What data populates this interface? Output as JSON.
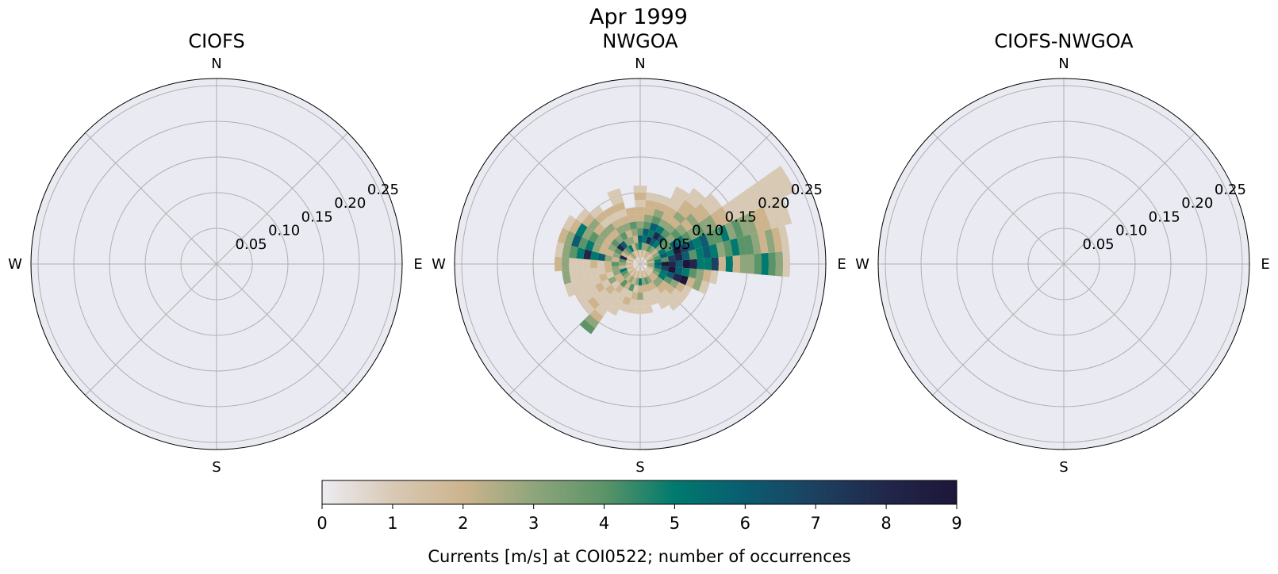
{
  "figure": {
    "title": "Apr 1999"
  },
  "chart_data": [
    {
      "type": "polar-histogram",
      "title": "CIOFS",
      "directions": [
        "N",
        "E",
        "S",
        "W"
      ],
      "r_ticks": [
        "0.05",
        "0.10",
        "0.15",
        "0.20",
        "0.25"
      ],
      "r_range": [
        0,
        0.26
      ],
      "grid": true,
      "bins": []
    },
    {
      "type": "polar-histogram",
      "title": "NWGOA",
      "directions": [
        "N",
        "E",
        "S",
        "W"
      ],
      "r_ticks": [
        "0.05",
        "0.10",
        "0.15",
        "0.20",
        "0.25"
      ],
      "r_range": [
        0,
        0.26
      ],
      "grid": true,
      "direction_bin_deg": 10,
      "speed_bin": 0.01,
      "bins": [
        {
          "dir_deg": 90,
          "counts": [
            2,
            3,
            6,
            9,
            8,
            6,
            9,
            8,
            5,
            5,
            7,
            2,
            5,
            2,
            3,
            3,
            4,
            5,
            4,
            3,
            1
          ]
        },
        {
          "dir_deg": 80,
          "counts": [
            1,
            2,
            5,
            4,
            7,
            8,
            6,
            4,
            5,
            6,
            5,
            3,
            4,
            5,
            4,
            4,
            3,
            2,
            3,
            2,
            1
          ]
        },
        {
          "dir_deg": 70,
          "counts": [
            1,
            3,
            4,
            6,
            5,
            9,
            7,
            6,
            5,
            6,
            4,
            4,
            5,
            3,
            4,
            3,
            3,
            2,
            2,
            1,
            1,
            1
          ]
        },
        {
          "dir_deg": 60,
          "counts": [
            0,
            2,
            3,
            5,
            4,
            6,
            5,
            4,
            3,
            4,
            3,
            3,
            2,
            2,
            1,
            1,
            1,
            1,
            1,
            1,
            1,
            1,
            1,
            1
          ]
        },
        {
          "dir_deg": 50,
          "counts": [
            0,
            1,
            2,
            3,
            4,
            3,
            4,
            3,
            2,
            3,
            2,
            2,
            1,
            1
          ]
        },
        {
          "dir_deg": 100,
          "counts": [
            1,
            3,
            5,
            7,
            9,
            6,
            5,
            4,
            3,
            2,
            1
          ]
        },
        {
          "dir_deg": 110,
          "counts": [
            0,
            2,
            4,
            5,
            6,
            8,
            9,
            2,
            3,
            1
          ]
        },
        {
          "dir_deg": 120,
          "counts": [
            0,
            1,
            3,
            5,
            4,
            3,
            2,
            1
          ]
        },
        {
          "dir_deg": 130,
          "counts": [
            0,
            1,
            2,
            3,
            2,
            2,
            1,
            1
          ]
        },
        {
          "dir_deg": 140,
          "counts": [
            0,
            1,
            2,
            3,
            2,
            1,
            1,
            1
          ]
        },
        {
          "dir_deg": 150,
          "counts": [
            1,
            2,
            3,
            2,
            1,
            1,
            1
          ]
        },
        {
          "dir_deg": 160,
          "counts": [
            0,
            1,
            4,
            2,
            1,
            1
          ]
        },
        {
          "dir_deg": 170,
          "counts": [
            1,
            2,
            3,
            2,
            1,
            1,
            1
          ]
        },
        {
          "dir_deg": 180,
          "counts": [
            0,
            1,
            5,
            2,
            3,
            1,
            1
          ]
        },
        {
          "dir_deg": 190,
          "counts": [
            1,
            2,
            3,
            1,
            2,
            1,
            1
          ]
        },
        {
          "dir_deg": 200,
          "counts": [
            0,
            1,
            2,
            4,
            1,
            2,
            1
          ]
        },
        {
          "dir_deg": 210,
          "counts": [
            1,
            2,
            3,
            2,
            1,
            1,
            1,
            1
          ]
        },
        {
          "dir_deg": 220,
          "counts": [
            0,
            1,
            2,
            4,
            2,
            1,
            1,
            1,
            1,
            2,
            3,
            4
          ]
        },
        {
          "dir_deg": 230,
          "counts": [
            1,
            2,
            3,
            2,
            1,
            2,
            1,
            1,
            2,
            1
          ]
        },
        {
          "dir_deg": 240,
          "counts": [
            0,
            1,
            4,
            2,
            3,
            1,
            2,
            1,
            1,
            1
          ]
        },
        {
          "dir_deg": 250,
          "counts": [
            1,
            2,
            5,
            3,
            1,
            2,
            1,
            1,
            1,
            1,
            1
          ]
        },
        {
          "dir_deg": 260,
          "counts": [
            0,
            1,
            2,
            3,
            2,
            1,
            1,
            1,
            1,
            1,
            3
          ]
        },
        {
          "dir_deg": 270,
          "counts": [
            1,
            2,
            3,
            4,
            2,
            1,
            2,
            1,
            1,
            1,
            3,
            2
          ]
        },
        {
          "dir_deg": 280,
          "counts": [
            0,
            1,
            4,
            2,
            3,
            6,
            5,
            8,
            5,
            4,
            3,
            1
          ]
        },
        {
          "dir_deg": 290,
          "counts": [
            1,
            2,
            8,
            3,
            2,
            2,
            3,
            5,
            4,
            6,
            3,
            2
          ]
        },
        {
          "dir_deg": 300,
          "counts": [
            0,
            1,
            2,
            4,
            3,
            2,
            3,
            4,
            3,
            5,
            2,
            1
          ]
        },
        {
          "dir_deg": 310,
          "counts": [
            1,
            2,
            3,
            8,
            4,
            2,
            3,
            2,
            3,
            2,
            1
          ]
        },
        {
          "dir_deg": 320,
          "counts": [
            0,
            3,
            4,
            6,
            3,
            2,
            3,
            1,
            2,
            1
          ]
        },
        {
          "dir_deg": 330,
          "counts": [
            1,
            2,
            5,
            3,
            4,
            3,
            2,
            1,
            2
          ]
        },
        {
          "dir_deg": 340,
          "counts": [
            0,
            1,
            2,
            3,
            2,
            3,
            2,
            1,
            2,
            1,
            1
          ]
        },
        {
          "dir_deg": 350,
          "counts": [
            1,
            2,
            4,
            2,
            3,
            4,
            2,
            2
          ]
        },
        {
          "dir_deg": 0,
          "counts": [
            0,
            1,
            5,
            6,
            4,
            3,
            2,
            2,
            1,
            2,
            1
          ]
        },
        {
          "dir_deg": 10,
          "counts": [
            1,
            2,
            3,
            5,
            6,
            4,
            3,
            2,
            2,
            1
          ]
        },
        {
          "dir_deg": 20,
          "counts": [
            0,
            1,
            3,
            8,
            5,
            6,
            4,
            3,
            2,
            1
          ]
        },
        {
          "dir_deg": 30,
          "counts": [
            1,
            2,
            4,
            6,
            8,
            5,
            3,
            2,
            2,
            1,
            1,
            1
          ]
        },
        {
          "dir_deg": 40,
          "counts": [
            0,
            2,
            3,
            5,
            6,
            4,
            3,
            2,
            3,
            2,
            2,
            1,
            1
          ]
        }
      ]
    },
    {
      "type": "polar-histogram",
      "title": "CIOFS-NWGOA",
      "directions": [
        "N",
        "E",
        "S",
        "W"
      ],
      "r_ticks": [
        "0.05",
        "0.10",
        "0.15",
        "0.20",
        "0.25"
      ],
      "r_range": [
        0,
        0.26
      ],
      "grid": true,
      "bins": []
    }
  ],
  "colorbar": {
    "ticks": [
      "0",
      "1",
      "2",
      "3",
      "4",
      "5",
      "6",
      "7",
      "8",
      "9"
    ],
    "range": [
      0,
      9
    ],
    "label": "Currents [m/s] at COI0522; number of occurrences",
    "colors": [
      "#edecf1",
      "#d8c9b5",
      "#cdb48d",
      "#8fa57b",
      "#5b9468",
      "#007a6e",
      "#0a5c70",
      "#1c4160",
      "#21274a",
      "#1d1638"
    ]
  }
}
